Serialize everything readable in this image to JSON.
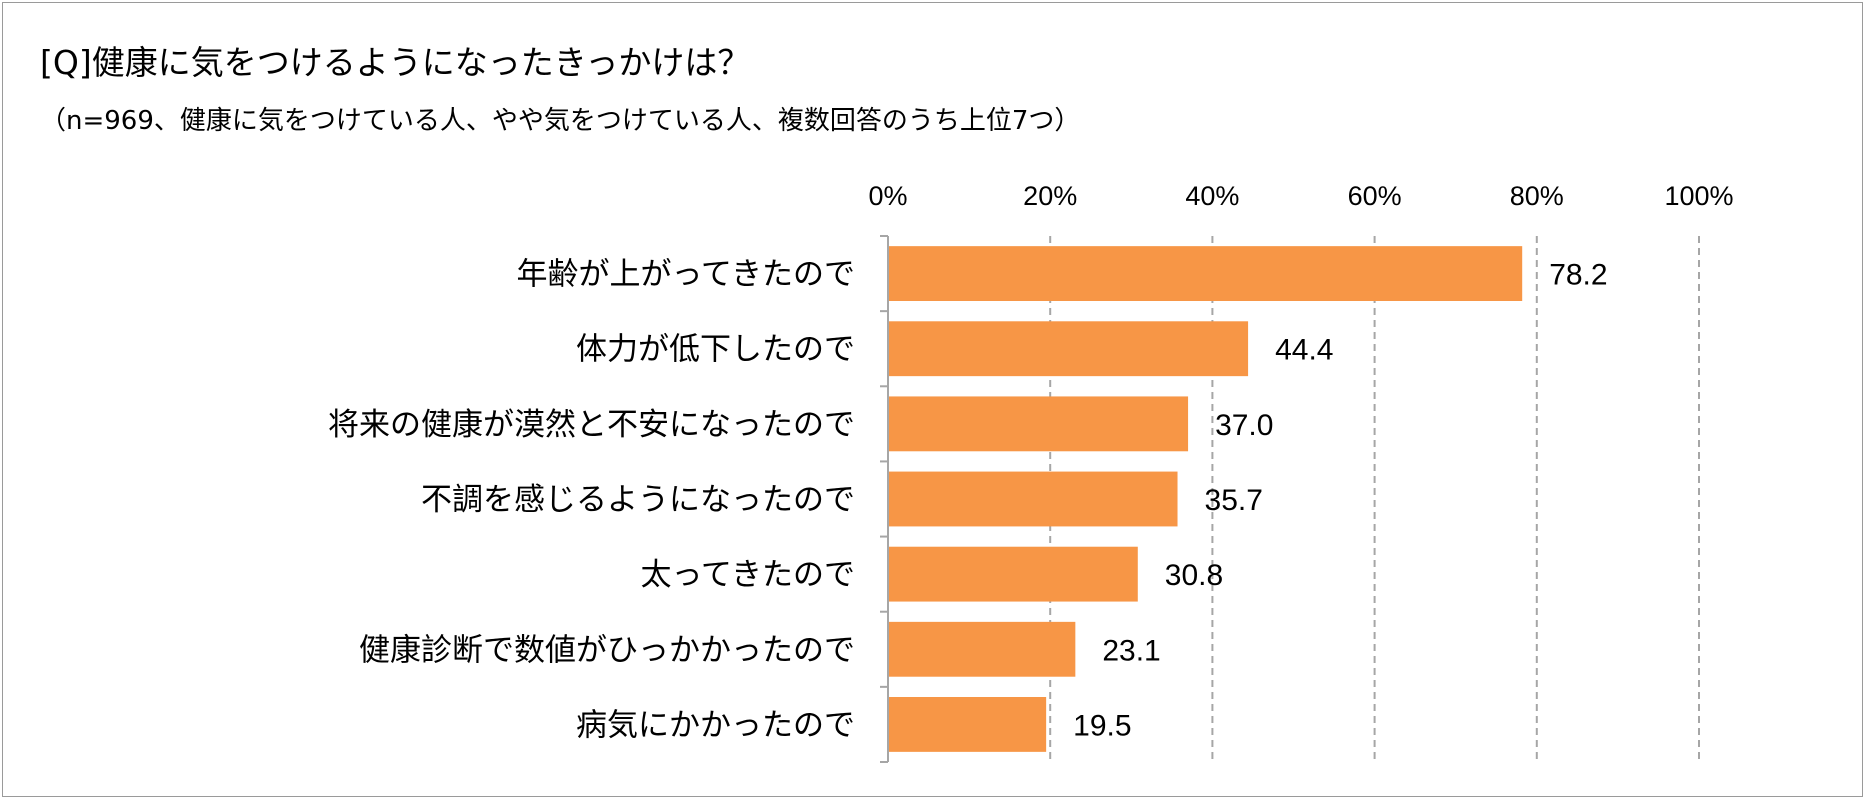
{
  "chart_data": {
    "type": "bar",
    "orientation": "horizontal",
    "title": "[Q]健康に気をつけるようになったきっかけは？",
    "subtitle": "（n=969、健康に気をつけている人、やや気をつけている人、複数回答のうち上位7つ）",
    "categories": [
      "年齢が上がってきたので",
      "体力が低下したので",
      "将来の健康が漠然と不安になったので",
      "不調を感じるようになったので",
      "太ってきたので",
      "健康診断で数値がひっかかったので",
      "病気にかかったので"
    ],
    "values": [
      78.2,
      44.4,
      37.0,
      35.7,
      30.8,
      23.1,
      19.5
    ],
    "value_labels": [
      "78.2",
      "44.4",
      "37.0",
      "35.7",
      "30.8",
      "23.1",
      "19.5"
    ],
    "xlim": [
      0,
      100
    ],
    "ticks": [
      0,
      20,
      40,
      60,
      80,
      100
    ],
    "tick_labels": [
      "0%",
      "20%",
      "40%",
      "60%",
      "80%",
      "100%"
    ],
    "tick_position": "top",
    "grid": "vertical-dashed",
    "bar_color": "#F79646",
    "grid_color": "#A6A6A6",
    "axis_color": "#A6A6A6"
  }
}
